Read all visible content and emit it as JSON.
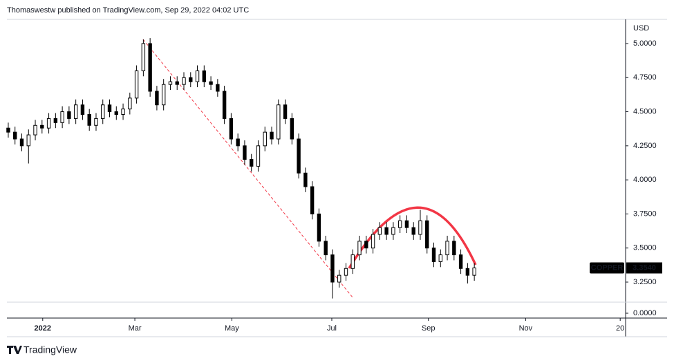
{
  "header": "Thomaswestw published on TradingView.com, Sep 29, 2022 04:02 UTC",
  "footer": "TradingView",
  "chart_data": {
    "type": "candlestick",
    "currency": "USD",
    "xlim": [
      -0.2,
      91.4
    ],
    "xticks": [
      {
        "value": 5.1,
        "label": "2022"
      },
      {
        "value": 18.74,
        "label": "Mar"
      },
      {
        "value": 33.1,
        "label": "May"
      },
      {
        "value": 47.9,
        "label": "Jul"
      },
      {
        "value": 62.2,
        "label": "Sep"
      },
      {
        "value": 76.6,
        "label": "Nov"
      },
      {
        "value": 90.6,
        "label": "20"
      }
    ],
    "ylim": [
      3.1029,
      5.1775
    ],
    "yticks": [
      {
        "value": 3.25,
        "label": "3.2500"
      },
      {
        "value": 3.5,
        "label": "3.5000"
      },
      {
        "value": 3.75,
        "label": "3.7500"
      },
      {
        "value": 4,
        "label": "4.0000"
      },
      {
        "value": 4.25,
        "label": "4.2500"
      },
      {
        "value": 4.5,
        "label": "4.5000"
      },
      {
        "value": 4.75,
        "label": "4.7500"
      },
      {
        "value": 5,
        "label": "5.0000"
      }
    ],
    "lower_yticks": [
      {
        "value": 0,
        "label": "0.0000"
      }
    ],
    "series": [
      {
        "name": "COPPER",
        "color": "#000000",
        "last_label": "3.3540",
        "open": [
          4.38,
          4.35,
          4.3,
          4.25,
          4.33,
          4.4,
          4.38,
          4.45,
          4.42,
          4.5,
          4.45,
          4.55,
          4.48,
          4.4,
          4.45,
          4.55,
          4.5,
          4.48,
          4.52,
          4.6,
          4.8,
          5.0,
          4.65,
          4.55,
          4.7,
          4.72,
          4.7,
          4.75,
          4.72,
          4.8,
          4.72,
          4.7,
          4.65,
          4.45,
          4.3,
          4.25,
          4.15,
          4.1,
          4.25,
          4.35,
          4.3,
          4.55,
          4.45,
          4.3,
          4.05,
          3.95,
          3.75,
          3.55,
          3.45,
          3.25,
          3.3,
          3.35,
          3.45,
          3.55,
          3.5,
          3.6,
          3.65,
          3.6,
          3.65,
          3.7,
          3.65,
          3.6,
          3.7,
          3.5,
          3.4,
          3.45,
          3.55,
          3.45,
          3.35,
          3.3
        ],
        "high": [
          4.42,
          4.39,
          4.34,
          4.37,
          4.44,
          4.44,
          4.49,
          4.49,
          4.54,
          4.54,
          4.59,
          4.59,
          4.52,
          4.49,
          4.59,
          4.59,
          4.54,
          4.56,
          4.64,
          4.84,
          5.03,
          5.04,
          4.69,
          4.74,
          4.76,
          4.76,
          4.79,
          4.79,
          4.84,
          4.84,
          4.76,
          4.74,
          4.69,
          4.49,
          4.34,
          4.29,
          4.19,
          4.29,
          4.39,
          4.39,
          4.59,
          4.59,
          4.49,
          4.34,
          4.09,
          3.99,
          3.79,
          3.59,
          3.49,
          3.34,
          3.39,
          3.49,
          3.59,
          3.59,
          3.64,
          3.69,
          3.69,
          3.69,
          3.74,
          3.74,
          3.69,
          3.78,
          3.74,
          3.54,
          3.49,
          3.59,
          3.59,
          3.49,
          3.39,
          3.39
        ],
        "low": [
          4.31,
          4.26,
          4.21,
          4.12,
          4.29,
          4.34,
          4.34,
          4.38,
          4.38,
          4.41,
          4.41,
          4.44,
          4.36,
          4.36,
          4.41,
          4.46,
          4.44,
          4.44,
          4.48,
          4.56,
          4.76,
          4.61,
          4.51,
          4.51,
          4.66,
          4.66,
          4.66,
          4.68,
          4.68,
          4.68,
          4.66,
          4.61,
          4.41,
          4.26,
          4.21,
          4.11,
          4.06,
          4.06,
          4.21,
          4.26,
          4.26,
          4.41,
          4.26,
          4.01,
          3.91,
          3.71,
          3.51,
          3.41,
          3.13,
          3.21,
          3.26,
          3.31,
          3.41,
          3.46,
          3.46,
          3.56,
          3.56,
          3.56,
          3.61,
          3.61,
          3.56,
          3.56,
          3.46,
          3.36,
          3.36,
          3.41,
          3.41,
          3.31,
          3.24,
          3.26
        ],
        "close": [
          4.35,
          4.3,
          4.25,
          4.33,
          4.4,
          4.38,
          4.45,
          4.42,
          4.5,
          4.45,
          4.55,
          4.48,
          4.4,
          4.45,
          4.55,
          4.5,
          4.48,
          4.52,
          4.6,
          4.8,
          5.0,
          4.65,
          4.55,
          4.7,
          4.72,
          4.7,
          4.75,
          4.72,
          4.8,
          4.72,
          4.7,
          4.65,
          4.45,
          4.3,
          4.25,
          4.15,
          4.1,
          4.25,
          4.35,
          4.3,
          4.55,
          4.45,
          4.3,
          4.05,
          3.95,
          3.75,
          3.55,
          3.45,
          3.25,
          3.3,
          3.35,
          3.45,
          3.55,
          3.5,
          3.6,
          3.65,
          3.6,
          3.65,
          3.7,
          3.65,
          3.6,
          3.7,
          3.5,
          3.4,
          3.45,
          3.55,
          3.45,
          3.35,
          3.3,
          3.354
        ]
      }
    ]
  }
}
